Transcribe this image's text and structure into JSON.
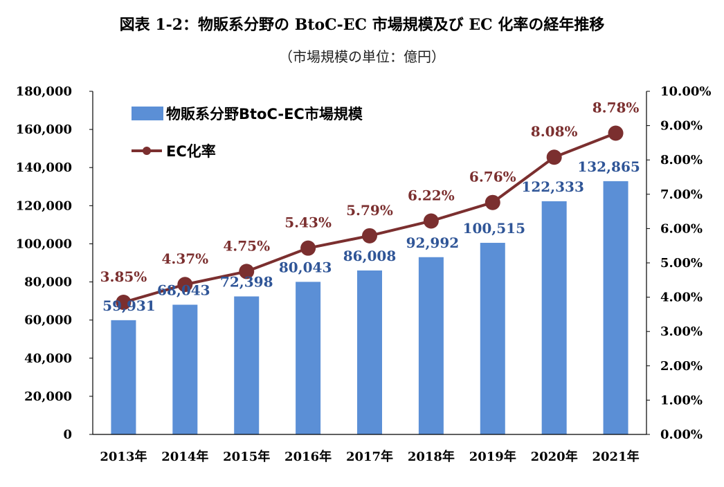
{
  "title": "図表 1-2：物販系分野の BtoC-EC 市場規模及び EC 化率の経年推移",
  "subtitle": "（市場規模の単位：億円）",
  "colors": {
    "bar": "#5b8fd6",
    "line": "#7b2f2f",
    "bar_label": "#2f5597",
    "axis": "#000000"
  },
  "chart_data": {
    "type": "bar",
    "categories": [
      "2013年",
      "2014年",
      "2015年",
      "2016年",
      "2017年",
      "2018年",
      "2019年",
      "2020年",
      "2021年"
    ],
    "series": [
      {
        "name": "物販系分野BtoC-EC市場規模",
        "type": "bar",
        "axis": "left",
        "values": [
          59931,
          68043,
          72398,
          80043,
          86008,
          92992,
          100515,
          122333,
          132865
        ],
        "labels": [
          "59,931",
          "68,043",
          "72,398",
          "80,043",
          "86,008",
          "92,992",
          "100,515",
          "122,333",
          "132,865"
        ]
      },
      {
        "name": "EC化率",
        "type": "line",
        "axis": "right",
        "values": [
          3.85,
          4.37,
          4.75,
          5.43,
          5.79,
          6.22,
          6.76,
          8.08,
          8.78
        ],
        "labels": [
          "3.85%",
          "4.37%",
          "4.75%",
          "5.43%",
          "5.79%",
          "6.22%",
          "6.76%",
          "8.08%",
          "8.78%"
        ]
      }
    ],
    "ylim_left": [
      0,
      180000
    ],
    "ylim_right": [
      0,
      10
    ],
    "left_ticks": [
      "0",
      "20,000",
      "40,000",
      "60,000",
      "80,000",
      "100,000",
      "120,000",
      "140,000",
      "160,000",
      "180,000"
    ],
    "right_ticks": [
      "0.00%",
      "1.00%",
      "2.00%",
      "3.00%",
      "4.00%",
      "5.00%",
      "6.00%",
      "7.00%",
      "8.00%",
      "9.00%",
      "10.00%"
    ],
    "legend": [
      "物販系分野BtoC-EC市場規模",
      "EC化率"
    ],
    "legend_position": "top-left",
    "grid": false
  }
}
